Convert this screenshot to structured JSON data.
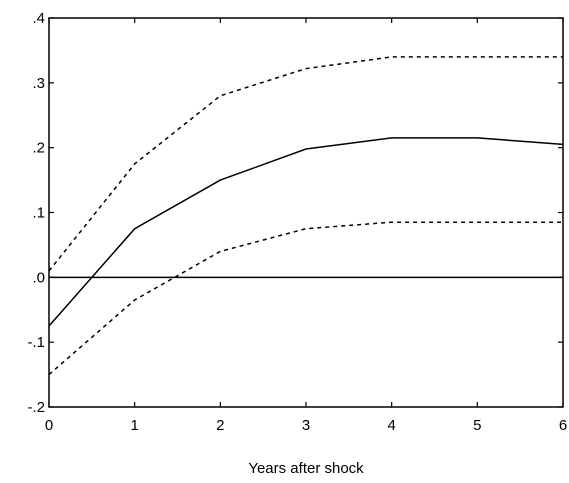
{
  "chart_data": {
    "type": "line",
    "title": "",
    "xlabel": "Years after shock",
    "ylabel": "",
    "xlim": [
      0,
      6
    ],
    "ylim": [
      -0.2,
      0.4
    ],
    "x_ticks": [
      0,
      1,
      2,
      3,
      4,
      5,
      6
    ],
    "x_tick_labels": [
      "0",
      "1",
      "2",
      "3",
      "4",
      "5",
      "6"
    ],
    "y_ticks": [
      -0.2,
      -0.1,
      0.0,
      0.1,
      0.2,
      0.3,
      0.4
    ],
    "y_tick_labels": [
      "-.2",
      "-.1",
      ".0",
      ".1",
      ".2",
      ".3",
      ".4"
    ],
    "grid": false,
    "legend": "none",
    "reference_line": 0.0,
    "x": [
      0,
      1,
      2,
      3,
      4,
      5,
      6
    ],
    "series": [
      {
        "values": [
          -0.075,
          0.075,
          0.15,
          0.198,
          0.215,
          0.215,
          0.205
        ],
        "style": "solid",
        "color": "#000000"
      },
      {
        "values": [
          0.01,
          0.175,
          0.28,
          0.322,
          0.34,
          0.34,
          0.34
        ],
        "style": "dashed",
        "color": "#000000"
      },
      {
        "values": [
          -0.15,
          -0.035,
          0.04,
          0.075,
          0.085,
          0.085,
          0.085
        ],
        "style": "dashed",
        "color": "#000000"
      }
    ]
  }
}
